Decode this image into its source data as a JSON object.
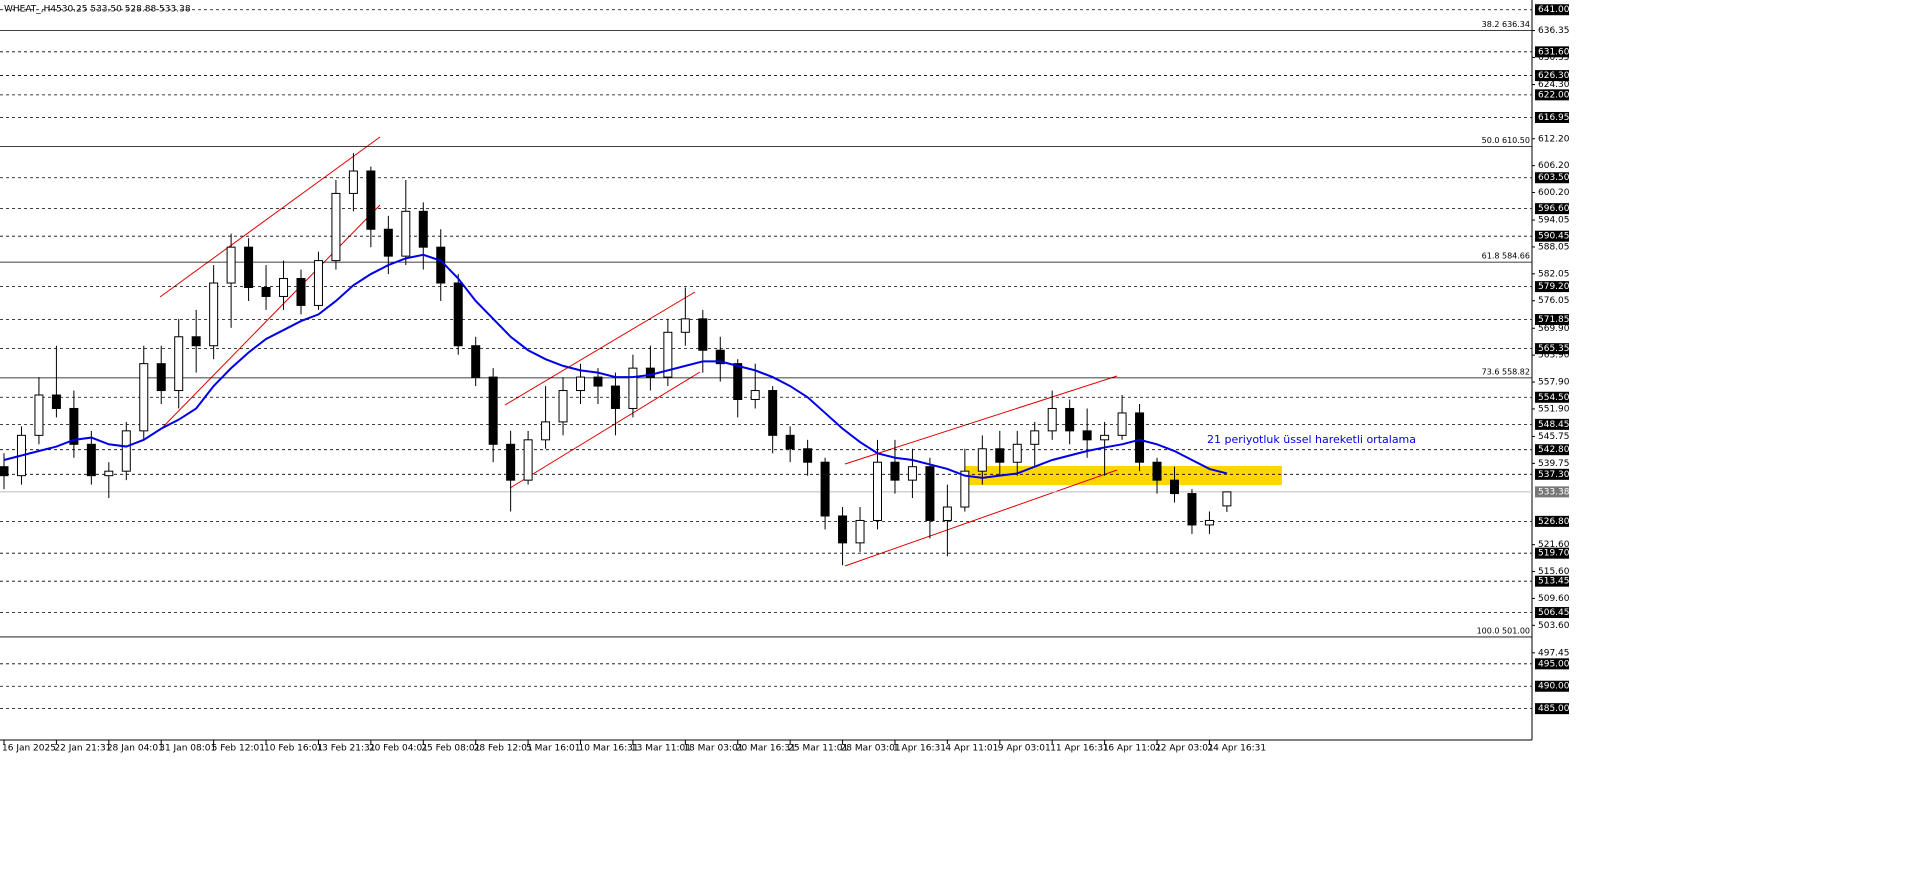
{
  "chart_data": {
    "type": "candlestick",
    "title": "WHEAT_,H4",
    "subtitle": "530.25 533.50 528.88 533.38",
    "annotation": "21 periyotluk üssel hareketli ortalama",
    "ylim": [
      478,
      642.5
    ],
    "up_color": "#ffffff",
    "down_color": "#000000",
    "ema_color": "#0000e6",
    "categories": [
      "16 Jan 2025",
      null,
      null,
      "22 Jan 21:31",
      null,
      null,
      "28 Jan 04:01",
      null,
      null,
      "31 Jan 08:01",
      null,
      null,
      "5 Feb 12:01",
      null,
      null,
      "10 Feb 16:01",
      null,
      null,
      "13 Feb 21:31",
      null,
      null,
      "20 Feb 04:01",
      null,
      null,
      "25 Feb 08:01",
      null,
      null,
      "28 Feb 12:01",
      null,
      null,
      "5 Mar 16:01",
      null,
      null,
      "10 Mar 16:31",
      null,
      null,
      "13 Mar 11:01",
      null,
      null,
      "18 Mar 03:01",
      null,
      null,
      "20 Mar 16:31",
      null,
      null,
      "25 Mar 11:01",
      null,
      null,
      "28 Mar 03:01",
      null,
      null,
      "1 Apr 16:31",
      null,
      null,
      "4 Apr 11:01",
      null,
      null,
      "9 Apr 03:01",
      null,
      null,
      "11 Apr 16:31",
      null,
      null,
      "16 Apr 11:01",
      null,
      null,
      "22 Apr 03:01",
      null,
      null,
      "24 Apr 16:31",
      null
    ],
    "open": [
      539,
      537,
      546,
      555,
      552,
      544,
      537,
      538,
      547,
      562,
      556,
      568,
      566,
      580,
      588,
      579,
      577,
      581,
      575,
      585,
      600,
      605,
      592,
      586,
      596,
      588,
      580,
      566,
      559,
      544,
      536,
      545,
      549,
      556,
      559,
      557,
      552,
      561,
      559,
      569,
      572,
      565,
      562,
      554,
      556,
      546,
      543,
      540,
      528,
      522,
      527,
      540,
      536,
      539,
      527,
      530,
      538,
      543,
      540,
      544,
      547,
      552,
      547,
      545,
      546,
      551,
      540,
      536,
      533,
      526,
      530.25
    ],
    "high": [
      542,
      548,
      559,
      566,
      556,
      547,
      540,
      549,
      566,
      566,
      572,
      574,
      584,
      591,
      590,
      584,
      585,
      583,
      587,
      603,
      609,
      606,
      595,
      603,
      598,
      592,
      582,
      568,
      561,
      547,
      547,
      557,
      559,
      562,
      561,
      560,
      564,
      566,
      572,
      579,
      574,
      568,
      563,
      562,
      557,
      548,
      545,
      541,
      530,
      530,
      545,
      545,
      543,
      541,
      535,
      543,
      546,
      547,
      547,
      549,
      556,
      554,
      552,
      549,
      555,
      553,
      541,
      539,
      534,
      529,
      533.5
    ],
    "low": [
      534,
      535,
      544,
      550,
      541,
      535,
      532,
      536,
      545,
      553,
      552,
      560,
      563,
      570,
      576,
      574,
      574,
      573,
      574,
      583,
      596,
      588,
      582,
      584,
      583,
      576,
      564,
      557,
      540,
      529,
      535,
      543,
      546,
      553,
      553,
      546,
      550,
      556,
      557,
      566,
      560,
      558,
      550,
      552,
      542,
      540,
      537,
      525,
      517,
      520,
      525,
      533,
      532,
      523,
      519,
      529,
      535,
      537,
      537,
      539,
      545,
      544,
      541,
      537,
      545,
      538,
      533,
      531,
      524,
      524,
      528.88
    ],
    "close": [
      537,
      546,
      555,
      552,
      544,
      537,
      538,
      547,
      562,
      556,
      568,
      566,
      580,
      588,
      579,
      577,
      581,
      575,
      585,
      600,
      605,
      592,
      586,
      596,
      588,
      580,
      566,
      559,
      544,
      536,
      545,
      549,
      556,
      559,
      557,
      552,
      561,
      559,
      569,
      572,
      565,
      562,
      554,
      556,
      546,
      543,
      540,
      528,
      522,
      527,
      540,
      536,
      539,
      527,
      530,
      538,
      543,
      540,
      544,
      547,
      552,
      547,
      545,
      546,
      551,
      540,
      536,
      533,
      526,
      527,
      533.38
    ],
    "ema": [
      540.5,
      541.5,
      542.5,
      543.5,
      545,
      545.5,
      544,
      543.5,
      545,
      547.5,
      549.5,
      552,
      557,
      561,
      564.5,
      567.5,
      569.5,
      571.5,
      573,
      576,
      579.5,
      582,
      584,
      585.5,
      586.3,
      585,
      581,
      576,
      572,
      568,
      565,
      563,
      561.5,
      560.5,
      560,
      559,
      559,
      559.5,
      560.5,
      561.5,
      562.5,
      562.5,
      561.5,
      560.5,
      559,
      557,
      554.5,
      551,
      547.5,
      544.5,
      542,
      541,
      540.5,
      539.5,
      538.5,
      537,
      536.5,
      537,
      537.5,
      539,
      540.5,
      541.5,
      542.5,
      543.3,
      544,
      545,
      544,
      542.5,
      540.5,
      538.5,
      537.5
    ],
    "yticks": [
      {
        "value": 636.35,
        "label": "636.35"
      },
      {
        "value": 630.35,
        "label": "630.35"
      },
      {
        "value": 624.3,
        "label": "624.30"
      },
      {
        "value": 612.2,
        "label": "612.20"
      },
      {
        "value": 606.2,
        "label": "606.20"
      },
      {
        "value": 600.2,
        "label": "600.20"
      },
      {
        "value": 594.05,
        "label": "594.05"
      },
      {
        "value": 588.05,
        "label": "588.05"
      },
      {
        "value": 582.05,
        "label": "582.05"
      },
      {
        "value": 576.05,
        "label": "576.05"
      },
      {
        "value": 569.9,
        "label": "569.90"
      },
      {
        "value": 563.9,
        "label": "563.90"
      },
      {
        "value": 557.9,
        "label": "557.90"
      },
      {
        "value": 551.9,
        "label": "551.90"
      },
      {
        "value": 545.75,
        "label": "545.75"
      },
      {
        "value": 539.75,
        "label": "539.75"
      },
      {
        "value": 521.6,
        "label": "521.60"
      },
      {
        "value": 515.6,
        "label": "515.60"
      },
      {
        "value": 509.6,
        "label": "509.60"
      },
      {
        "value": 503.6,
        "label": "503.60"
      },
      {
        "value": 497.45,
        "label": "497.45"
      }
    ],
    "levels": [
      {
        "value": 641,
        "label": "641.00"
      },
      {
        "value": 631.6,
        "label": "631.60"
      },
      {
        "value": 626.3,
        "label": "626.30"
      },
      {
        "value": 622,
        "label": "622.00"
      },
      {
        "value": 616.95,
        "label": "616.95"
      },
      {
        "value": 603.5,
        "label": "603.50"
      },
      {
        "value": 596.6,
        "label": "596.60"
      },
      {
        "value": 590.45,
        "label": "590.45"
      },
      {
        "value": 579.2,
        "label": "579.20"
      },
      {
        "value": 571.85,
        "label": "571.85"
      },
      {
        "value": 565.35,
        "label": "565.35"
      },
      {
        "value": 554.5,
        "label": "554.50"
      },
      {
        "value": 548.45,
        "label": "548.45"
      },
      {
        "value": 542.8,
        "label": "542.80"
      },
      {
        "value": 537.3,
        "label": "537.30"
      },
      {
        "value": 526.8,
        "label": "526.80"
      },
      {
        "value": 519.7,
        "label": "519.70"
      },
      {
        "value": 513.45,
        "label": "513.45"
      },
      {
        "value": 506.45,
        "label": "506.45"
      },
      {
        "value": 495,
        "label": "495.00"
      },
      {
        "value": 490,
        "label": "490.00"
      },
      {
        "value": 485,
        "label": "485.00"
      }
    ],
    "current_price": {
      "value": 533.38,
      "label": "533.38"
    },
    "fib_levels": [
      {
        "value": 636.34,
        "label": "38.2 636.34"
      },
      {
        "value": 610.5,
        "label": "50.0 610.50"
      },
      {
        "value": 584.66,
        "label": "61.8 584.66"
      },
      {
        "value": 558.82,
        "label": "73.6 558.82"
      },
      {
        "value": 501,
        "label": "100.0 501.00"
      }
    ]
  }
}
